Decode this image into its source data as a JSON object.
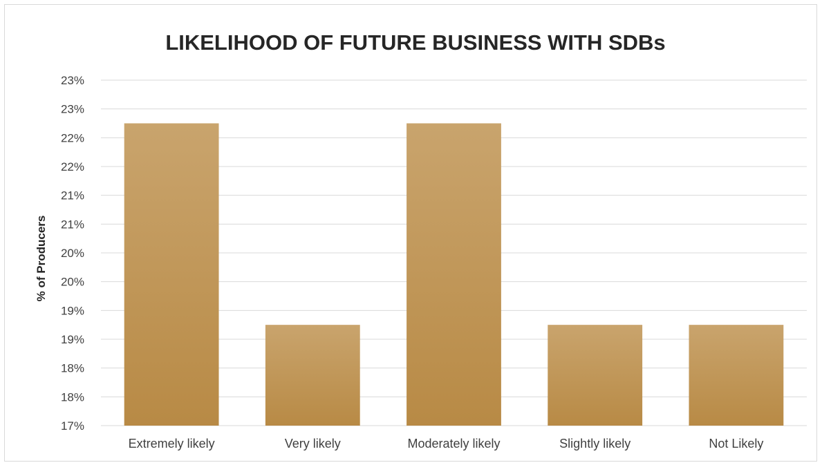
{
  "chart_data": {
    "type": "bar",
    "title": "LIKELIHOOD OF FUTURE BUSINESS WITH SDBs",
    "xlabel": "",
    "ylabel": "% of Producers",
    "categories": [
      "Extremely likely",
      "Very likely",
      "Moderately likely",
      "Slightly likely",
      "Not Likely"
    ],
    "values": [
      22.25,
      18.75,
      22.25,
      18.75,
      18.75
    ],
    "ylim": [
      17,
      23
    ],
    "yticks": [
      17,
      17.5,
      18,
      18.5,
      19,
      19.5,
      20,
      20.5,
      21,
      21.5,
      22,
      22.5,
      23
    ],
    "ytick_labels": [
      "17%",
      "18%",
      "18%",
      "19%",
      "19%",
      "20%",
      "20%",
      "21%",
      "21%",
      "22%",
      "22%",
      "23%",
      "23%"
    ],
    "grid": true,
    "legend": "none",
    "bar_color_top": "#c9a46d",
    "bar_color_bottom": "#b88a45"
  }
}
